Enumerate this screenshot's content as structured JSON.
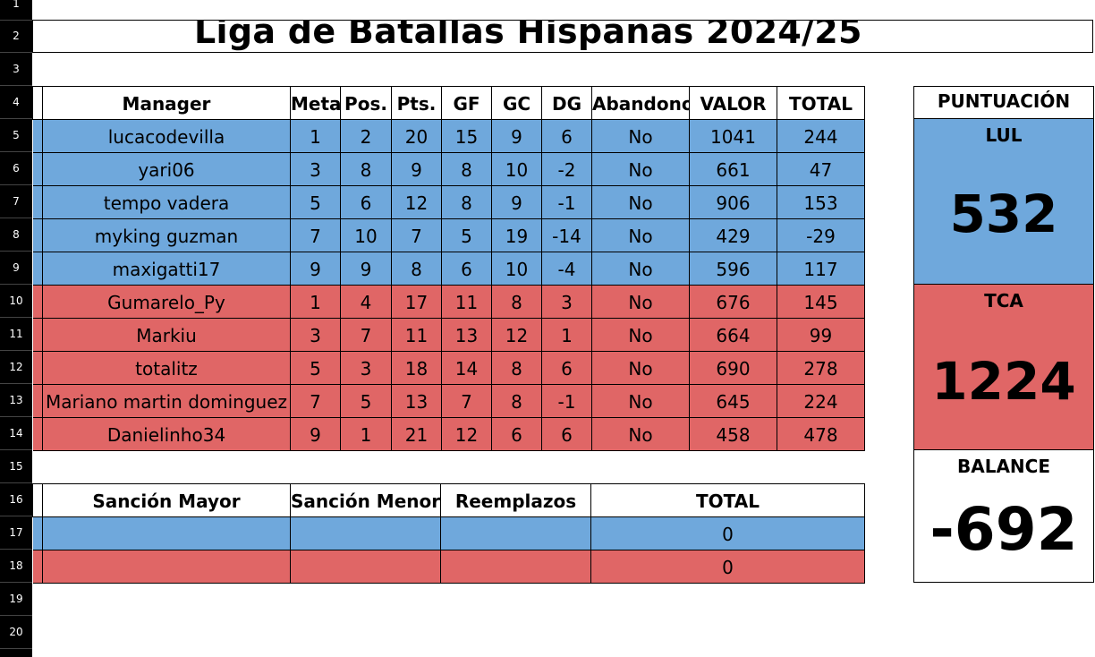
{
  "title": "Liga de Batallas Hispanas 2024/25",
  "row_numbers": [
    "1",
    "2",
    "3",
    "4",
    "5",
    "6",
    "7",
    "8",
    "9",
    "10",
    "11",
    "12",
    "13",
    "14",
    "15",
    "16",
    "17",
    "18",
    "19",
    "20"
  ],
  "main_table": {
    "headers": [
      "Manager",
      "Meta",
      "Pos.",
      "Pts.",
      "GF",
      "GC",
      "DG",
      "Abandono",
      "VALOR",
      "TOTAL"
    ],
    "rows": [
      {
        "team": "blue",
        "cells": [
          "lucacodevilla",
          "1",
          "2",
          "20",
          "15",
          "9",
          "6",
          "No",
          "1041",
          "244"
        ]
      },
      {
        "team": "blue",
        "cells": [
          "yari06",
          "3",
          "8",
          "9",
          "8",
          "10",
          "-2",
          "No",
          "661",
          "47"
        ]
      },
      {
        "team": "blue",
        "cells": [
          "tempo vadera",
          "5",
          "6",
          "12",
          "8",
          "9",
          "-1",
          "No",
          "906",
          "153"
        ]
      },
      {
        "team": "blue",
        "cells": [
          "myking guzman",
          "7",
          "10",
          "7",
          "5",
          "19",
          "-14",
          "No",
          "429",
          "-29"
        ]
      },
      {
        "team": "blue",
        "cells": [
          "maxigatti17",
          "9",
          "9",
          "8",
          "6",
          "10",
          "-4",
          "No",
          "596",
          "117"
        ]
      },
      {
        "team": "red",
        "cells": [
          "Gumarelo_Py",
          "1",
          "4",
          "17",
          "11",
          "8",
          "3",
          "No",
          "676",
          "145"
        ]
      },
      {
        "team": "red",
        "cells": [
          "Markiu",
          "3",
          "7",
          "11",
          "13",
          "12",
          "1",
          "No",
          "664",
          "99"
        ]
      },
      {
        "team": "red",
        "cells": [
          "totalitz",
          "5",
          "3",
          "18",
          "14",
          "8",
          "6",
          "No",
          "690",
          "278"
        ]
      },
      {
        "team": "red",
        "cells": [
          "Mariano martin dominguez",
          "7",
          "5",
          "13",
          "7",
          "8",
          "-1",
          "No",
          "645",
          "224"
        ]
      },
      {
        "team": "red",
        "cells": [
          "Danielinho34",
          "9",
          "1",
          "21",
          "12",
          "6",
          "6",
          "No",
          "458",
          "478"
        ]
      }
    ]
  },
  "sanctions_table": {
    "headers": [
      "Sanción Mayor",
      "Sanción Menor",
      "Reemplazos",
      "TOTAL"
    ],
    "rows": [
      {
        "team": "blue",
        "cells": [
          "",
          "",
          "",
          "0"
        ]
      },
      {
        "team": "red",
        "cells": [
          "",
          "",
          "",
          "0"
        ]
      }
    ]
  },
  "score_panel": {
    "header": "PUNTUACIÓN",
    "team1_label": "LUL",
    "team1_value": "532",
    "team2_label": "TCA",
    "team2_value": "1224",
    "balance_label": "BALANCE",
    "balance_value": "-692"
  },
  "colors": {
    "blue": "#6fa8dc",
    "red": "#e06666"
  }
}
